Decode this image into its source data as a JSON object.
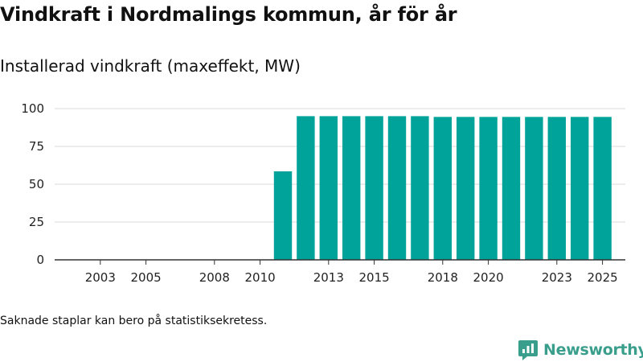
{
  "title": "Vindkraft i Nordmalings kommun, år för år",
  "subtitle": "Installerad vindkraft (maxeffekt, MW)",
  "note": "Saknade staplar kan bero på statistiksekretess.",
  "brand": {
    "name": "Newsworthy",
    "icon": "newsworthy-logo-icon"
  },
  "colors": {
    "bar": "#00a39a",
    "brand": "#3a9e8c",
    "grid": "#d9d9d9",
    "axis": "#333333"
  },
  "chart_data": {
    "type": "bar",
    "title": "Vindkraft i Nordmalings kommun, år för år",
    "subtitle": "Installerad vindkraft (maxeffekt, MW)",
    "xlabel": "",
    "ylabel": "",
    "ylim": [
      0,
      100
    ],
    "yticks": [
      0,
      25,
      50,
      75,
      100
    ],
    "grid": true,
    "xticks": [
      2003,
      2005,
      2008,
      2010,
      2013,
      2015,
      2018,
      2020,
      2023,
      2025
    ],
    "x_range": [
      2001,
      2026
    ],
    "categories": [
      2011,
      2012,
      2013,
      2014,
      2015,
      2016,
      2017,
      2018,
      2019,
      2020,
      2021,
      2022,
      2023,
      2024,
      2025
    ],
    "values": [
      58.5,
      95,
      95,
      95,
      95,
      95,
      95,
      94.5,
      94.5,
      94.5,
      94.5,
      94.5,
      94.5,
      94.5,
      94.5
    ]
  }
}
